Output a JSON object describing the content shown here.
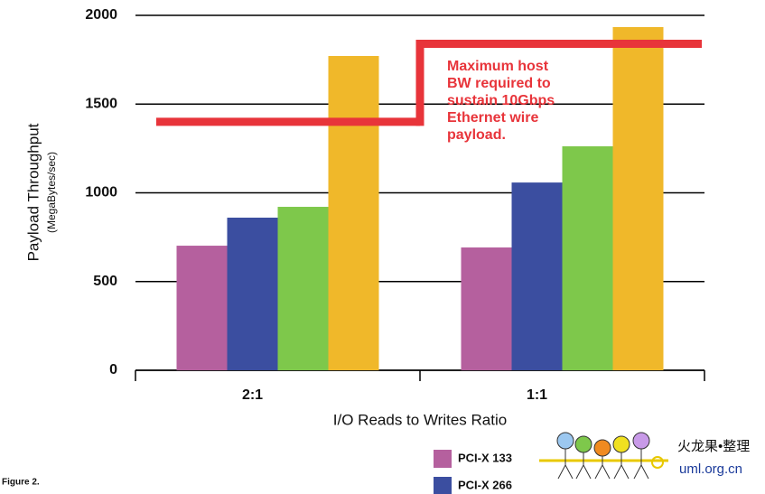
{
  "chart_data": {
    "type": "bar",
    "y_label": "Payload Throughput",
    "y_sublabel": "(MegaBytes/sec)",
    "x_label": "I/O Reads to Writes Ratio",
    "caption": "Figure 2.",
    "categories": [
      "2:1",
      "1:1"
    ],
    "series": [
      {
        "name": "PCI-X 133",
        "color": "#b5609e",
        "values": [
          702,
          692
        ]
      },
      {
        "name": "PCI-X 266",
        "color": "#3b4ea0",
        "values": [
          860,
          1058
        ]
      },
      {
        "color": "#7ec84b",
        "values": [
          921,
          1262
        ]
      },
      {
        "color": "#f0b82a",
        "values": [
          1771,
          1934
        ]
      }
    ],
    "threshold": {
      "color": "#e8343a",
      "values": [
        1400,
        1840
      ],
      "annotation": [
        "Maximum host",
        "BW required to",
        "sustain 10Gbps",
        "Ethernet wire",
        "payload."
      ]
    },
    "ylim": [
      0,
      2000
    ],
    "yticks": [
      0,
      500,
      1000,
      1500,
      2000
    ],
    "grid": true,
    "watermark": {
      "text": "火龙果•整理",
      "url": "uml.org.cn"
    }
  }
}
